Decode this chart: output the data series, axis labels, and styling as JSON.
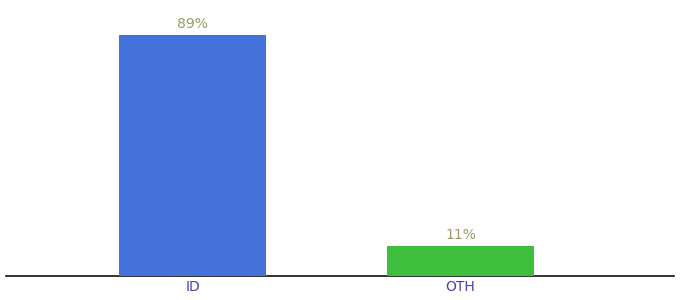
{
  "categories": [
    "ID",
    "OTH"
  ],
  "values": [
    89,
    11
  ],
  "bar_colors": [
    "#4472db",
    "#3dbf3d"
  ],
  "label_texts": [
    "89%",
    "11%"
  ],
  "label_color": "#9a9a6a",
  "xlabel": "",
  "ylabel": "",
  "ylim": [
    0,
    100
  ],
  "background_color": "#ffffff",
  "tick_color": "#4444aa",
  "bar_width": 0.55,
  "label_fontsize": 10,
  "tick_fontsize": 10,
  "x_positions": [
    1,
    2
  ],
  "xlim": [
    0.3,
    2.8
  ]
}
